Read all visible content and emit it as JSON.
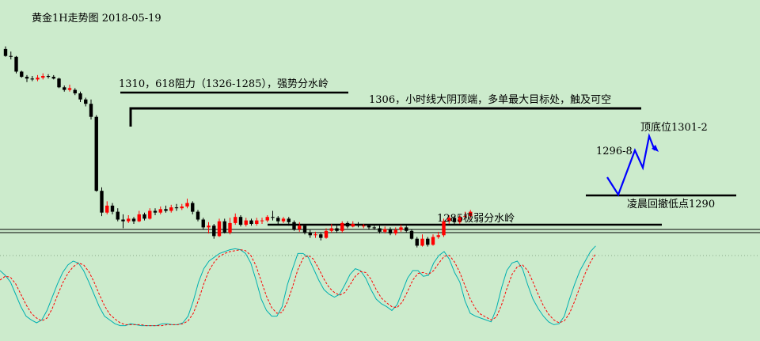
{
  "title": "黄金1H走势图  2018-05-19",
  "annotations": {
    "resistance": "1310，618阻力（1326-1285），强势分水岭",
    "bear_candle_top": "1306，小时线大阴顶端，多单最大目标处，触及可空",
    "weak_divide": "1285极弱分水岭",
    "early_low": "凌晨回撤低点1290",
    "target_mid": "1296-8",
    "target_top": "顶底位1301-2"
  },
  "colors": {
    "background": "#ccebcc",
    "up_candle": "#ff0000",
    "down_candle": "#000000",
    "projection": "#0000ff",
    "k_line": "#00b0b0",
    "d_line": "#ff0000",
    "separator": "#000000"
  },
  "chart_data": [
    {
      "type": "candlestick",
      "name": "price",
      "levels": [
        1310,
        1306,
        1296,
        1290,
        1285
      ],
      "candles": [
        [
          1322.2,
          1320.6,
          1322.8,
          1320.4
        ],
        [
          1320.6,
          1320.4,
          1321.6,
          1319.8
        ],
        [
          1320.4,
          1317.0,
          1320.6,
          1316.6
        ],
        [
          1317.0,
          1315.8,
          1317.2,
          1315.6
        ],
        [
          1315.8,
          1315.4,
          1316.2,
          1314.6
        ],
        [
          1315.4,
          1315.2,
          1316.0,
          1314.8
        ],
        [
          1315.2,
          1315.6,
          1316.2,
          1314.8
        ],
        [
          1315.6,
          1316.0,
          1316.6,
          1315.2
        ],
        [
          1316.0,
          1315.8,
          1316.4,
          1315.4
        ],
        [
          1315.8,
          1315.4,
          1316.2,
          1315.2
        ],
        [
          1315.4,
          1313.4,
          1315.6,
          1313.2
        ],
        [
          1313.4,
          1312.8,
          1313.8,
          1312.4
        ],
        [
          1312.8,
          1313.2,
          1314.0,
          1312.4
        ],
        [
          1312.8,
          1312.0,
          1313.2,
          1311.6
        ],
        [
          1312.0,
          1310.6,
          1312.4,
          1310.0
        ],
        [
          1310.6,
          1309.6,
          1311.0,
          1309.0
        ],
        [
          1309.6,
          1306.6,
          1310.6,
          1306.0
        ],
        [
          1306.6,
          1289.6,
          1307.0,
          1289.4
        ],
        [
          1289.6,
          1284.6,
          1290.4,
          1283.8
        ],
        [
          1284.6,
          1286.2,
          1287.2,
          1284.2
        ],
        [
          1286.2,
          1284.8,
          1286.8,
          1284.2
        ],
        [
          1284.8,
          1283.0,
          1285.6,
          1282.6
        ],
        [
          1283.0,
          1282.6,
          1284.2,
          1281.0
        ],
        [
          1282.6,
          1283.2,
          1284.0,
          1282.2
        ],
        [
          1283.2,
          1282.6,
          1283.6,
          1282.0
        ],
        [
          1282.6,
          1284.2,
          1285.0,
          1282.4
        ],
        [
          1284.2,
          1283.2,
          1284.6,
          1282.8
        ],
        [
          1283.2,
          1285.0,
          1285.6,
          1283.0
        ],
        [
          1285.0,
          1284.6,
          1285.6,
          1284.0
        ],
        [
          1284.6,
          1285.4,
          1286.0,
          1284.2
        ],
        [
          1285.4,
          1285.0,
          1286.2,
          1284.6
        ],
        [
          1285.0,
          1285.8,
          1286.4,
          1284.6
        ],
        [
          1285.8,
          1285.6,
          1286.6,
          1285.0
        ],
        [
          1285.6,
          1286.0,
          1286.6,
          1285.2
        ],
        [
          1286.0,
          1286.8,
          1287.8,
          1285.6
        ],
        [
          1286.8,
          1284.8,
          1287.2,
          1284.2
        ],
        [
          1284.8,
          1283.0,
          1285.2,
          1282.6
        ],
        [
          1283.0,
          1281.2,
          1283.4,
          1280.8
        ],
        [
          1281.2,
          1281.6,
          1282.4,
          1279.8
        ],
        [
          1281.6,
          1279.2,
          1282.0,
          1278.6
        ],
        [
          1279.2,
          1282.6,
          1283.2,
          1279.0
        ],
        [
          1282.6,
          1280.0,
          1283.2,
          1279.8
        ],
        [
          1280.0,
          1282.2,
          1283.4,
          1279.6
        ],
        [
          1282.2,
          1283.6,
          1284.4,
          1281.8
        ],
        [
          1283.6,
          1281.8,
          1284.0,
          1281.4
        ],
        [
          1281.8,
          1282.8,
          1283.4,
          1281.4
        ],
        [
          1282.8,
          1282.0,
          1283.2,
          1281.6
        ],
        [
          1282.0,
          1282.8,
          1283.4,
          1281.6
        ],
        [
          1282.8,
          1282.8,
          1283.4,
          1282.0
        ],
        [
          1282.8,
          1283.6,
          1284.0,
          1282.4
        ],
        [
          1283.6,
          1283.4,
          1285.0,
          1282.8
        ],
        [
          1283.4,
          1282.6,
          1283.8,
          1282.0
        ],
        [
          1282.6,
          1283.2,
          1283.6,
          1282.2
        ],
        [
          1283.2,
          1282.4,
          1283.6,
          1281.6
        ],
        [
          1282.4,
          1280.8,
          1282.8,
          1280.4
        ],
        [
          1280.8,
          1281.6,
          1282.4,
          1280.2
        ],
        [
          1281.6,
          1280.0,
          1282.0,
          1279.6
        ],
        [
          1280.0,
          1279.4,
          1280.6,
          1278.8
        ],
        [
          1279.4,
          1279.6,
          1280.2,
          1278.8
        ],
        [
          1279.6,
          1278.8,
          1280.0,
          1278.2
        ],
        [
          1278.8,
          1280.4,
          1281.0,
          1278.6
        ],
        [
          1280.4,
          1281.0,
          1282.0,
          1280.0
        ],
        [
          1281.0,
          1280.4,
          1281.6,
          1280.0
        ],
        [
          1280.4,
          1282.2,
          1282.6,
          1280.0
        ],
        [
          1282.2,
          1281.4,
          1282.6,
          1281.0
        ],
        [
          1281.4,
          1282.0,
          1282.6,
          1281.2
        ],
        [
          1282.0,
          1281.6,
          1282.4,
          1281.2
        ],
        [
          1281.6,
          1281.6,
          1282.0,
          1281.0
        ],
        [
          1281.6,
          1281.2,
          1282.0,
          1280.8
        ],
        [
          1281.2,
          1281.0,
          1281.6,
          1280.6
        ],
        [
          1281.0,
          1280.2,
          1281.6,
          1279.8
        ],
        [
          1280.2,
          1280.8,
          1281.4,
          1279.8
        ],
        [
          1280.8,
          1279.8,
          1281.2,
          1279.4
        ],
        [
          1279.8,
          1280.6,
          1281.2,
          1279.4
        ],
        [
          1280.6,
          1281.2,
          1281.8,
          1280.2
        ],
        [
          1281.2,
          1280.4,
          1281.6,
          1280.0
        ],
        [
          1280.4,
          1278.6,
          1280.8,
          1278.4
        ],
        [
          1278.6,
          1277.0,
          1279.0,
          1276.6
        ],
        [
          1277.0,
          1278.6,
          1279.6,
          1276.8
        ],
        [
          1278.6,
          1277.2,
          1279.0,
          1276.8
        ],
        [
          1277.2,
          1279.0,
          1279.6,
          1277.0
        ],
        [
          1279.0,
          1279.4,
          1280.2,
          1278.6
        ],
        [
          1279.4,
          1282.6,
          1283.2,
          1279.0
        ],
        [
          1282.6,
          1283.4,
          1284.0,
          1282.0
        ],
        [
          1283.4,
          1282.4,
          1283.8,
          1282.0
        ],
        [
          1282.4,
          1283.6,
          1284.0,
          1282.0
        ],
        [
          1283.6,
          1283.8,
          1284.8,
          1283.2
        ],
        [
          1283.8,
          1284.8,
          1285.2,
          1283.2
        ]
      ]
    },
    {
      "type": "line",
      "name": "stochastic",
      "ylim": [
        0,
        100
      ],
      "series": [
        {
          "values": [
            70,
            65,
            58,
            45,
            32,
            22,
            18,
            15,
            18,
            28,
            42,
            56,
            68,
            76,
            80,
            78,
            70,
            58,
            45,
            32,
            22,
            18,
            14,
            12,
            12,
            14,
            13,
            12,
            12,
            12,
            12,
            14,
            14,
            13,
            13,
            15,
            22,
            38,
            58,
            72,
            80,
            84,
            88,
            90,
            92,
            93,
            92,
            88,
            78,
            60,
            40,
            28,
            22,
            22,
            32,
            55,
            72,
            88,
            88,
            84,
            72,
            60,
            50,
            45,
            42,
            45,
            55,
            66,
            72,
            70,
            62,
            50,
            40,
            35,
            32,
            28,
            34,
            48,
            62,
            70,
            70,
            64,
            65,
            78,
            86,
            90,
            82,
            68,
            58,
            38,
            25,
            22,
            20,
            18,
            16,
            30,
            52,
            70,
            78,
            80,
            72,
            55,
            40,
            30,
            22,
            16,
            13,
            14,
            22,
            40,
            56,
            70,
            80,
            90,
            96
          ]
        },
        {
          "values": [
            60,
            64,
            63,
            56,
            45,
            34,
            25,
            20,
            17,
            20,
            30,
            44,
            57,
            67,
            74,
            78,
            76,
            69,
            58,
            45,
            33,
            24,
            19,
            15,
            13,
            13,
            13,
            13,
            12,
            12,
            12,
            12,
            13,
            13,
            13,
            14,
            17,
            25,
            39,
            56,
            70,
            79,
            85,
            88,
            90,
            91,
            92,
            91,
            86,
            75,
            59,
            43,
            31,
            25,
            26,
            37,
            53,
            71,
            83,
            86,
            82,
            72,
            61,
            52,
            47,
            44,
            47,
            55,
            64,
            69,
            68,
            61,
            50,
            41,
            36,
            32,
            31,
            37,
            48,
            60,
            67,
            68,
            66,
            70,
            78,
            85,
            86,
            79,
            68,
            54,
            40,
            30,
            24,
            21,
            18,
            21,
            34,
            51,
            66,
            74,
            76,
            70,
            58,
            45,
            33,
            24,
            18,
            15,
            17,
            25,
            38,
            53,
            67,
            79,
            88
          ]
        }
      ]
    }
  ]
}
